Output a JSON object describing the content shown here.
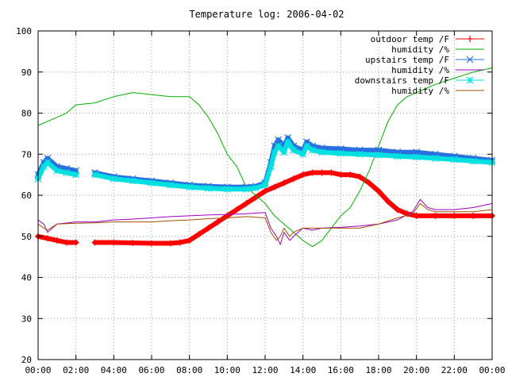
{
  "chart_data": {
    "type": "line",
    "title": "Temperature log: 2006-04-02",
    "xlabel": "",
    "ylabel": "",
    "xlim": [
      0,
      24
    ],
    "ylim": [
      20,
      100
    ],
    "x_tick_labels": [
      "00:00",
      "02:00",
      "04:00",
      "06:00",
      "08:00",
      "10:00",
      "12:00",
      "14:00",
      "16:00",
      "18:00",
      "20:00",
      "22:00",
      "00:00"
    ],
    "y_tick_labels": [
      "20",
      "30",
      "40",
      "50",
      "60",
      "70",
      "80",
      "90",
      "100"
    ],
    "grid": true,
    "legend_position": "top-right",
    "series": [
      {
        "name": "outdoor temp /F",
        "color": "#ff0000",
        "marker": "plus",
        "points": [
          [
            0,
            50
          ],
          [
            0.5,
            49.5
          ],
          [
            1,
            49
          ],
          [
            1.5,
            48.5
          ],
          [
            2,
            48.5
          ],
          [
            null,
            null
          ],
          [
            3,
            48.5
          ],
          [
            4,
            48.5
          ],
          [
            5,
            48.4
          ],
          [
            6,
            48.3
          ],
          [
            7,
            48.3
          ],
          [
            7.5,
            48.5
          ],
          [
            8,
            49
          ],
          [
            8.5,
            50.5
          ],
          [
            9,
            52
          ],
          [
            9.5,
            53.5
          ],
          [
            10,
            55
          ],
          [
            10.5,
            56.5
          ],
          [
            11,
            58
          ],
          [
            11.5,
            59.5
          ],
          [
            12,
            61
          ],
          [
            12.5,
            62
          ],
          [
            13,
            63
          ],
          [
            13.5,
            64
          ],
          [
            14,
            65
          ],
          [
            14.5,
            65.5
          ],
          [
            15,
            65.5
          ],
          [
            15.5,
            65.5
          ],
          [
            16,
            65
          ],
          [
            16.5,
            65
          ],
          [
            17,
            64.5
          ],
          [
            17.5,
            63
          ],
          [
            18,
            61
          ],
          [
            18.5,
            58.5
          ],
          [
            19,
            56.5
          ],
          [
            19.5,
            55.5
          ],
          [
            20,
            55
          ],
          [
            21,
            55
          ],
          [
            22,
            55
          ],
          [
            23,
            55
          ],
          [
            24,
            55
          ]
        ]
      },
      {
        "name": "humidity /%",
        "color": "#00b000",
        "marker": "none",
        "points": [
          [
            0,
            77
          ],
          [
            0.5,
            78
          ],
          [
            1,
            79
          ],
          [
            1.5,
            80
          ],
          [
            2,
            82
          ],
          [
            3,
            82.5
          ],
          [
            4,
            84
          ],
          [
            5,
            85
          ],
          [
            6,
            84.5
          ],
          [
            7,
            84
          ],
          [
            8,
            84
          ],
          [
            8.5,
            82
          ],
          [
            9,
            79
          ],
          [
            9.5,
            75
          ],
          [
            10,
            70
          ],
          [
            10.5,
            67
          ],
          [
            11,
            62
          ],
          [
            11.5,
            60
          ],
          [
            12,
            58
          ],
          [
            12.5,
            55
          ],
          [
            13,
            53
          ],
          [
            13.5,
            51
          ],
          [
            14,
            49
          ],
          [
            14.5,
            47.5
          ],
          [
            15,
            49
          ],
          [
            15.5,
            52
          ],
          [
            16,
            55
          ],
          [
            16.5,
            57
          ],
          [
            17,
            61
          ],
          [
            17.5,
            66
          ],
          [
            18,
            72
          ],
          [
            18.5,
            78
          ],
          [
            19,
            82
          ],
          [
            19.5,
            84
          ],
          [
            20,
            85
          ],
          [
            20.5,
            86
          ],
          [
            21,
            87
          ],
          [
            22,
            88.5
          ],
          [
            23,
            90
          ],
          [
            24,
            91
          ]
        ]
      },
      {
        "name": "upstairs temp /F",
        "color": "#2a70e0",
        "marker": "x",
        "points": [
          [
            0,
            65
          ],
          [
            0.3,
            68
          ],
          [
            0.5,
            69
          ],
          [
            1,
            67
          ],
          [
            1.5,
            66.5
          ],
          [
            2,
            66
          ],
          [
            null,
            null
          ],
          [
            3,
            65.5
          ],
          [
            4,
            64.5
          ],
          [
            5,
            64
          ],
          [
            6,
            63.5
          ],
          [
            7,
            63
          ],
          [
            8,
            62.5
          ],
          [
            9,
            62.2
          ],
          [
            10,
            62
          ],
          [
            11,
            62
          ],
          [
            11.5,
            62.2
          ],
          [
            12,
            63
          ],
          [
            12.3,
            68
          ],
          [
            12.5,
            72
          ],
          [
            12.7,
            73.5
          ],
          [
            13,
            72
          ],
          [
            13.2,
            74
          ],
          [
            13.5,
            72
          ],
          [
            14,
            71
          ],
          [
            14.2,
            73
          ],
          [
            14.5,
            72
          ],
          [
            15,
            71.5
          ],
          [
            16,
            71.3
          ],
          [
            17,
            71
          ],
          [
            18,
            71
          ],
          [
            19,
            70.5
          ],
          [
            20,
            70.5
          ],
          [
            21,
            70
          ],
          [
            22,
            69.5
          ],
          [
            23,
            69
          ],
          [
            24,
            68.5
          ]
        ]
      },
      {
        "name": "humidity /%",
        "color": "#a000c0",
        "marker": "none",
        "points": [
          [
            0,
            54
          ],
          [
            0.3,
            53
          ],
          [
            0.5,
            51
          ],
          [
            1,
            53
          ],
          [
            2,
            53.5
          ],
          [
            3,
            53.5
          ],
          [
            4,
            54
          ],
          [
            5,
            54.2
          ],
          [
            6,
            54.5
          ],
          [
            7,
            54.8
          ],
          [
            8,
            55
          ],
          [
            9,
            55.2
          ],
          [
            10,
            55.3
          ],
          [
            11,
            55.5
          ],
          [
            12,
            55.8
          ],
          [
            12.3,
            52
          ],
          [
            12.6,
            50
          ],
          [
            12.8,
            48
          ],
          [
            13,
            51
          ],
          [
            13.3,
            49
          ],
          [
            13.5,
            50
          ],
          [
            14,
            52
          ],
          [
            14.5,
            51.5
          ],
          [
            15,
            52
          ],
          [
            16,
            52.2
          ],
          [
            17,
            52.5
          ],
          [
            18,
            53
          ],
          [
            19,
            54
          ],
          [
            19.8,
            56
          ],
          [
            20.2,
            59
          ],
          [
            20.6,
            57
          ],
          [
            21,
            56.5
          ],
          [
            22,
            56.5
          ],
          [
            23,
            57
          ],
          [
            24,
            58
          ]
        ]
      },
      {
        "name": "downstairs temp /F",
        "color": "#00e0e0",
        "marker": "star",
        "points": [
          [
            0,
            64
          ],
          [
            0.3,
            67
          ],
          [
            0.5,
            68
          ],
          [
            1,
            66
          ],
          [
            1.5,
            65.5
          ],
          [
            2,
            65
          ],
          [
            null,
            null
          ],
          [
            3,
            65
          ],
          [
            4,
            64
          ],
          [
            5,
            63.5
          ],
          [
            6,
            63
          ],
          [
            7,
            62.5
          ],
          [
            8,
            62
          ],
          [
            9,
            61.7
          ],
          [
            10,
            61.5
          ],
          [
            11,
            61.5
          ],
          [
            11.5,
            61.8
          ],
          [
            12,
            62.5
          ],
          [
            12.3,
            67
          ],
          [
            12.5,
            70.5
          ],
          [
            12.7,
            72
          ],
          [
            13,
            70.5
          ],
          [
            13.2,
            73
          ],
          [
            13.5,
            71
          ],
          [
            14,
            70
          ],
          [
            14.2,
            72
          ],
          [
            14.5,
            71
          ],
          [
            15,
            70.5
          ],
          [
            16,
            70.2
          ],
          [
            17,
            70
          ],
          [
            18,
            69.8
          ],
          [
            19,
            69.5
          ],
          [
            20,
            69.3
          ],
          [
            21,
            69
          ],
          [
            22,
            68.7
          ],
          [
            23,
            68.3
          ],
          [
            24,
            68
          ]
        ]
      },
      {
        "name": "humidity /%",
        "color": "#a05000",
        "marker": "none",
        "points": [
          [
            0,
            53
          ],
          [
            0.3,
            52
          ],
          [
            0.5,
            51.5
          ],
          [
            1,
            53
          ],
          [
            2,
            53.2
          ],
          [
            3,
            53.3
          ],
          [
            4,
            53.5
          ],
          [
            5,
            53.5
          ],
          [
            6,
            53.5
          ],
          [
            7,
            53.8
          ],
          [
            8,
            54
          ],
          [
            9,
            54.3
          ],
          [
            10,
            54.5
          ],
          [
            11,
            54.8
          ],
          [
            12,
            54.5
          ],
          [
            12.3,
            51
          ],
          [
            12.6,
            49
          ],
          [
            12.8,
            50
          ],
          [
            13,
            52
          ],
          [
            13.3,
            50
          ],
          [
            13.5,
            51
          ],
          [
            14,
            52
          ],
          [
            15,
            52
          ],
          [
            16,
            52
          ],
          [
            17,
            52
          ],
          [
            18,
            53
          ],
          [
            19,
            54.5
          ],
          [
            19.8,
            55.5
          ],
          [
            20.2,
            58
          ],
          [
            20.6,
            56.5
          ],
          [
            21,
            56
          ],
          [
            22,
            56
          ],
          [
            23,
            56
          ],
          [
            24,
            56.5
          ]
        ]
      }
    ]
  }
}
